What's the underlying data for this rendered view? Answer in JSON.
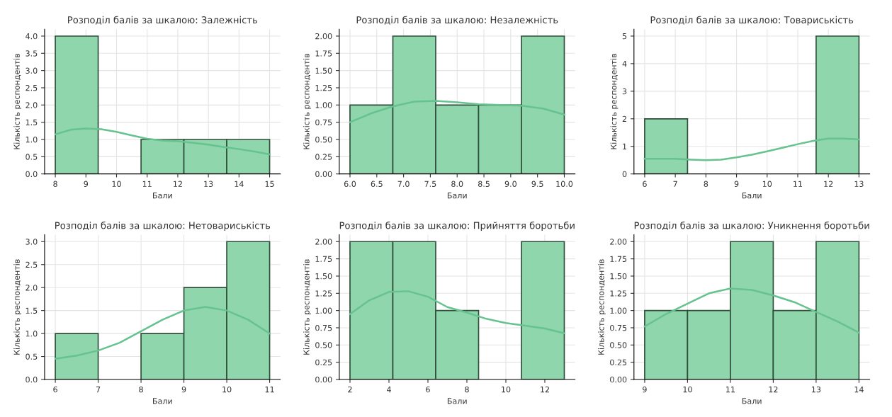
{
  "chart_data": [
    {
      "type": "histogram",
      "title": "Розподіл балів за шкалою: Залежність",
      "xlabel": "Бали",
      "ylabel": "Кількість респондентів",
      "bins": [
        8,
        9.4,
        10.8,
        12.2,
        13.6,
        15
      ],
      "values": [
        4,
        0,
        1,
        1,
        1
      ],
      "color": "#8fd6ad",
      "xlim": [
        7.65,
        15.35
      ],
      "xticks": [
        8,
        9,
        10,
        11,
        12,
        13,
        14,
        15
      ],
      "ylim": [
        0,
        4.2
      ],
      "yticks": [
        {
          "value": 0,
          "label": "0.0"
        },
        0.5,
        {
          "value": 1,
          "label": "1.0"
        },
        1.5,
        {
          "value": 2,
          "label": "2.0"
        },
        2.5,
        {
          "value": 3,
          "label": "3.0"
        },
        3.5,
        {
          "value": 4,
          "label": "4.0"
        }
      ],
      "grid": true,
      "series": [
        {
          "type": "line",
          "color": "#66c28f",
          "x": [
            8,
            8.5,
            9,
            9.5,
            10,
            10.5,
            11,
            11.5,
            12,
            12.5,
            13,
            13.5,
            14,
            14.5,
            15
          ],
          "values": [
            1.15,
            1.28,
            1.32,
            1.3,
            1.22,
            1.12,
            1.02,
            0.97,
            0.95,
            0.9,
            0.85,
            0.78,
            0.72,
            0.65,
            0.57
          ]
        }
      ]
    },
    {
      "type": "histogram",
      "title": "Розподіл балів за шкалою: Незалежність",
      "xlabel": "Бали",
      "ylabel": "Кількість респондентів",
      "bins": [
        6,
        6.8,
        7.6,
        8.4,
        9.2,
        10
      ],
      "values": [
        1,
        2,
        1,
        1,
        2
      ],
      "color": "#8fd6ad",
      "xlim": [
        5.8,
        10.2
      ],
      "xticks": [
        {
          "value": 6,
          "label": "6.0"
        },
        6.5,
        {
          "value": 7,
          "label": "7.0"
        },
        7.5,
        {
          "value": 8,
          "label": "8.0"
        },
        8.5,
        {
          "value": 9,
          "label": "9.0"
        },
        9.5,
        {
          "value": 10,
          "label": "10.0"
        }
      ],
      "ylim": [
        0,
        2.1
      ],
      "yticks": [
        {
          "value": 0,
          "label": "0.00"
        },
        0.25,
        {
          "value": 0.5,
          "label": "0.50"
        },
        0.75,
        {
          "value": 1,
          "label": "1.00"
        },
        1.25,
        {
          "value": 1.5,
          "label": "1.50"
        },
        1.75,
        {
          "value": 2,
          "label": "2.00"
        }
      ],
      "grid": true,
      "series": [
        {
          "type": "line",
          "color": "#66c28f",
          "x": [
            6,
            6.4,
            6.8,
            7.2,
            7.6,
            8,
            8.4,
            8.8,
            9.2,
            9.6,
            10
          ],
          "values": [
            0.75,
            0.88,
            0.98,
            1.05,
            1.06,
            1.04,
            1.01,
            1.0,
            0.99,
            0.95,
            0.86
          ]
        }
      ]
    },
    {
      "type": "histogram",
      "title": "Розподіл балів за шкалою: Товариськість",
      "xlabel": "Бали",
      "ylabel": "Кількість респондентів",
      "bins": [
        6,
        7.4,
        8.8,
        10.2,
        11.6,
        13
      ],
      "values": [
        2,
        0,
        0,
        0,
        5
      ],
      "color": "#8fd6ad",
      "xlim": [
        5.65,
        13.35
      ],
      "xticks": [
        6,
        7,
        8,
        9,
        10,
        11,
        12,
        13
      ],
      "ylim": [
        0,
        5.25
      ],
      "yticks": [
        0,
        1,
        2,
        3,
        4,
        5
      ],
      "grid": true,
      "series": [
        {
          "type": "line",
          "color": "#66c28f",
          "x": [
            6,
            7,
            7.5,
            8,
            8.5,
            9,
            9.5,
            10,
            10.5,
            11,
            11.5,
            12,
            12.5,
            13
          ],
          "values": [
            0.55,
            0.55,
            0.52,
            0.5,
            0.52,
            0.6,
            0.7,
            0.82,
            0.95,
            1.08,
            1.2,
            1.28,
            1.28,
            1.25
          ]
        }
      ]
    },
    {
      "type": "histogram",
      "title": "Розподіл балів за шкалою: Нетовариськість",
      "xlabel": "Бали",
      "ylabel": "Кількість респондентів",
      "bins": [
        6,
        7,
        8,
        9,
        10,
        11
      ],
      "values": [
        1,
        0,
        1,
        2,
        3
      ],
      "color": "#8fd6ad",
      "xlim": [
        5.75,
        11.25
      ],
      "xticks": [
        6,
        7,
        8,
        9,
        10,
        11
      ],
      "ylim": [
        0,
        3.15
      ],
      "yticks": [
        {
          "value": 0,
          "label": "0.0"
        },
        0.5,
        {
          "value": 1,
          "label": "1.0"
        },
        1.5,
        {
          "value": 2,
          "label": "2.0"
        },
        2.5,
        {
          "value": 3,
          "label": "3.0"
        }
      ],
      "grid": true,
      "series": [
        {
          "type": "line",
          "color": "#66c28f",
          "x": [
            6,
            6.5,
            7,
            7.5,
            8,
            8.5,
            9,
            9.5,
            10,
            10.5,
            11
          ],
          "values": [
            0.45,
            0.52,
            0.63,
            0.8,
            1.05,
            1.3,
            1.5,
            1.58,
            1.5,
            1.3,
            1.0
          ]
        }
      ]
    },
    {
      "type": "histogram",
      "title": "Розподіл балів за шкалою: Прийняття боротьби",
      "xlabel": "Бали",
      "ylabel": "Кількість респондентів",
      "bins": [
        2,
        4.2,
        6.4,
        8.6,
        10.8,
        13
      ],
      "values": [
        2,
        2,
        1,
        0,
        2
      ],
      "color": "#8fd6ad",
      "xlim": [
        1.45,
        13.55
      ],
      "xticks": [
        2,
        4,
        6,
        8,
        10,
        12
      ],
      "ylim": [
        0,
        2.1
      ],
      "yticks": [
        {
          "value": 0,
          "label": "0.00"
        },
        0.25,
        {
          "value": 0.5,
          "label": "0.50"
        },
        0.75,
        {
          "value": 1,
          "label": "1.00"
        },
        1.25,
        {
          "value": 1.5,
          "label": "1.50"
        },
        1.75,
        {
          "value": 2,
          "label": "2.00"
        }
      ],
      "grid": true,
      "series": [
        {
          "type": "line",
          "color": "#66c28f",
          "x": [
            2,
            3,
            4,
            5,
            6,
            7,
            8,
            9,
            10,
            11,
            12,
            13
          ],
          "values": [
            0.95,
            1.15,
            1.27,
            1.28,
            1.2,
            1.05,
            0.97,
            0.88,
            0.82,
            0.78,
            0.74,
            0.67
          ]
        }
      ]
    },
    {
      "type": "histogram",
      "title": "Розподіл балів за шкалою: Уникнення боротьби",
      "xlabel": "Бали",
      "ylabel": "Кількість респондентів",
      "bins": [
        9,
        10,
        11,
        12,
        13,
        14
      ],
      "values": [
        1,
        1,
        2,
        1,
        2
      ],
      "color": "#8fd6ad",
      "xlim": [
        8.75,
        14.25
      ],
      "xticks": [
        9,
        10,
        11,
        12,
        13,
        14
      ],
      "ylim": [
        0,
        2.1
      ],
      "yticks": [
        {
          "value": 0,
          "label": "0.00"
        },
        0.25,
        {
          "value": 0.5,
          "label": "0.50"
        },
        0.75,
        {
          "value": 1,
          "label": "1.00"
        },
        1.25,
        {
          "value": 1.5,
          "label": "1.50"
        },
        1.75,
        {
          "value": 2,
          "label": "2.00"
        }
      ],
      "grid": true,
      "series": [
        {
          "type": "line",
          "color": "#66c28f",
          "x": [
            9,
            9.5,
            10,
            10.5,
            11,
            11.5,
            12,
            12.5,
            13,
            13.5,
            14
          ],
          "values": [
            0.77,
            0.95,
            1.1,
            1.25,
            1.32,
            1.3,
            1.22,
            1.12,
            0.98,
            0.84,
            0.68
          ]
        }
      ]
    }
  ]
}
